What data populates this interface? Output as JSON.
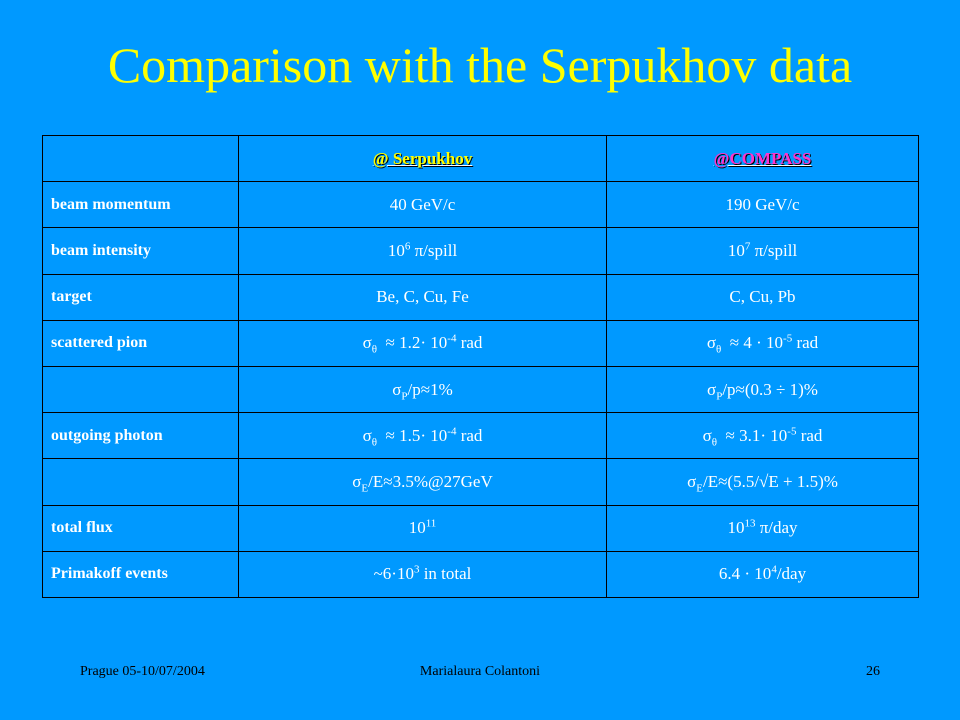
{
  "title": "Comparison with the Serpukhov data",
  "table": {
    "headers": {
      "serpukhov": "@ Serpukhov",
      "compass": "@COMPASS"
    },
    "rows": [
      {
        "label": "beam momentum",
        "serpukhov": "40 GeV/c",
        "compass": "190 GeV/c"
      },
      {
        "label": "beam intensity",
        "serpukhov": {
          "base": "10",
          "exp": "6",
          "rest": " π/spill"
        },
        "compass": {
          "base": "10",
          "exp": "7",
          "rest": " π/spill"
        }
      },
      {
        "label": "target",
        "serpukhov": "Be, C, Cu, Fe",
        "compass": "C, Cu, Pb"
      },
      {
        "label": "scattered pion",
        "serpukhov": {
          "sym": "σ",
          "sub": "θ",
          "mid": "  ≈ 1.2· 10",
          "exp": "-4",
          "rest": " rad"
        },
        "compass": {
          "sym": "σ",
          "sub": "θ",
          "mid": "  ≈ 4 · 10",
          "exp": "-5",
          "rest": " rad"
        }
      },
      {
        "label": "",
        "serpukhov": {
          "sym": "σ",
          "sub": "P",
          "rest": "/p≈1%"
        },
        "compass": {
          "sym": "σ",
          "sub": "P",
          "rest": "/p≈(0.3 ÷ 1)%"
        }
      },
      {
        "label": "outgoing photon",
        "serpukhov": {
          "sym": "σ",
          "sub": "θ",
          "mid": "  ≈ 1.5· 10",
          "exp": "-4",
          "rest": " rad"
        },
        "compass": {
          "sym": "σ",
          "sub": "θ",
          "mid": "  ≈ 3.1· 10",
          "exp": "-5",
          "rest": " rad"
        }
      },
      {
        "label": "",
        "serpukhov": {
          "sym": "σ",
          "sub": "E",
          "rest": "/E≈3.5%@27GeV"
        },
        "compass": {
          "sym": "σ",
          "sub": "E",
          "rest": "/E≈(5.5/√E + 1.5)%"
        }
      },
      {
        "label": "total flux",
        "serpukhov": {
          "base": "10",
          "exp": "11",
          "rest": ""
        },
        "compass": {
          "base": "10",
          "exp": "13",
          "rest": " π/day"
        }
      },
      {
        "label": "Primakoff events",
        "serpukhov": {
          "base": "~6·10",
          "exp": "3",
          "rest": " in total"
        },
        "compass": {
          "base": "6.4 · 10",
          "exp": "4",
          "rest": "/day"
        }
      }
    ]
  },
  "footer": {
    "left": "Prague 05-10/07/2004",
    "center": "Marialaura Colantoni",
    "right": "26"
  }
}
